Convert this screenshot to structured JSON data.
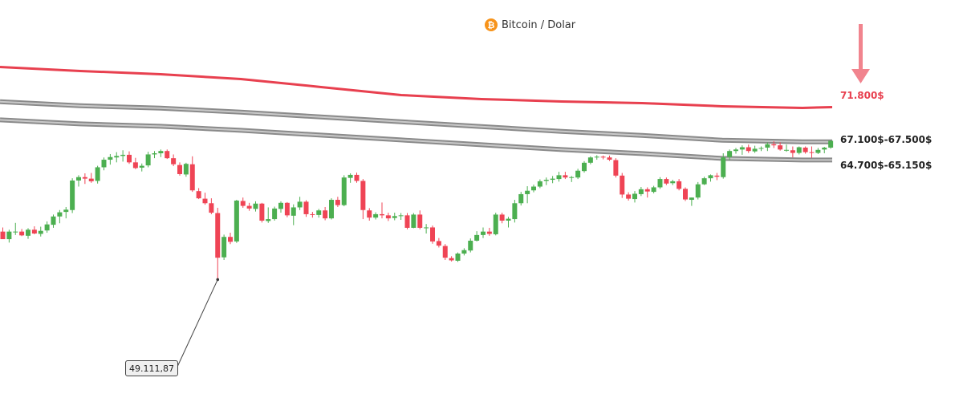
{
  "header": {
    "icon": "bitcoin-icon",
    "title": "Bitcoin / Dolar"
  },
  "colors": {
    "up": "#4caf50",
    "down": "#ef4455",
    "resistance": "#e8404f",
    "band": "#8a8a8a",
    "arrow": "#ef6f7a"
  },
  "labels": {
    "resistance": "71.800$",
    "upper_band": "67.100$-67.500$",
    "lower_band": "64.700$-65.150$",
    "low": "49.111,87"
  },
  "chart_data": {
    "type": "candlestick",
    "ylim": [
      46000,
      74000
    ],
    "annotations": {
      "low_value": 49111.87,
      "arrow": "down"
    },
    "levels": {
      "resistance": 71800,
      "upper_band": [
        67100,
        67500
      ],
      "lower_band": [
        64700,
        65150
      ]
    },
    "candles": [
      [
        55450,
        56000,
        54500,
        54450
      ],
      [
        54450,
        55700,
        54000,
        55450
      ],
      [
        55400,
        56600,
        55000,
        55450
      ],
      [
        55450,
        55800,
        54850,
        54950
      ],
      [
        54900,
        55900,
        54500,
        55700
      ],
      [
        55700,
        56150,
        55100,
        55200
      ],
      [
        55150,
        56100,
        54800,
        55550
      ],
      [
        55600,
        56800,
        55300,
        56400
      ],
      [
        56350,
        57700,
        55950,
        57450
      ],
      [
        57450,
        58300,
        56550,
        58000
      ],
      [
        58050,
        58700,
        57200,
        58350
      ],
      [
        58300,
        62500,
        57900,
        62200
      ],
      [
        62200,
        62900,
        61400,
        62650
      ],
      [
        62650,
        63150,
        61750,
        62450
      ],
      [
        62450,
        63200,
        61900,
        62100
      ],
      [
        62150,
        64150,
        61800,
        63950
      ],
      [
        63950,
        65250,
        63550,
        64950
      ],
      [
        64950,
        65700,
        64300,
        65300
      ],
      [
        65250,
        65950,
        64600,
        65450
      ],
      [
        65450,
        66200,
        64700,
        65600
      ],
      [
        65600,
        66050,
        64400,
        64600
      ],
      [
        64600,
        65200,
        63700,
        63850
      ],
      [
        63900,
        64450,
        63400,
        64150
      ],
      [
        64200,
        66000,
        63950,
        65650
      ],
      [
        65650,
        66100,
        65150,
        65800
      ],
      [
        65800,
        66300,
        65300,
        66100
      ],
      [
        66100,
        66300,
        65050,
        65150
      ],
      [
        65150,
        65650,
        64100,
        64350
      ],
      [
        64250,
        64600,
        62850,
        63050
      ],
      [
        63000,
        64550,
        62700,
        64400
      ],
      [
        64350,
        65400,
        60700,
        60900
      ],
      [
        60800,
        61200,
        59750,
        59850
      ],
      [
        59800,
        60600,
        59000,
        59200
      ],
      [
        59200,
        59850,
        57750,
        57950
      ],
      [
        57900,
        58600,
        49111.87,
        52000
      ],
      [
        52050,
        55050,
        51700,
        54750
      ],
      [
        54750,
        55300,
        53800,
        54100
      ],
      [
        54150,
        59650,
        53950,
        59550
      ],
      [
        59500,
        59950,
        58600,
        58850
      ],
      [
        58850,
        59250,
        58200,
        58500
      ],
      [
        58450,
        59450,
        58100,
        59150
      ],
      [
        59150,
        59250,
        56650,
        56900
      ],
      [
        56850,
        58650,
        56600,
        57100
      ],
      [
        57100,
        58750,
        56900,
        58500
      ],
      [
        58450,
        59450,
        57950,
        59250
      ],
      [
        59250,
        59350,
        57350,
        57600
      ],
      [
        57550,
        59050,
        56300,
        58650
      ],
      [
        58650,
        60050,
        58300,
        59400
      ],
      [
        59400,
        59600,
        57400,
        57750
      ],
      [
        57750,
        58050,
        57300,
        57650
      ],
      [
        57650,
        58450,
        57300,
        58250
      ],
      [
        58250,
        58700,
        56950,
        57200
      ],
      [
        57200,
        59850,
        57050,
        59650
      ],
      [
        59650,
        60050,
        58700,
        58950
      ],
      [
        58950,
        62900,
        58800,
        62600
      ],
      [
        62550,
        63150,
        61900,
        62950
      ],
      [
        62950,
        63250,
        61900,
        62150
      ],
      [
        62150,
        62400,
        57100,
        58300
      ],
      [
        58250,
        58550,
        56900,
        57300
      ],
      [
        57300,
        58000,
        57050,
        57750
      ],
      [
        57750,
        59300,
        57200,
        57600
      ],
      [
        57600,
        57950,
        56850,
        57200
      ],
      [
        57250,
        57950,
        56950,
        57500
      ],
      [
        57550,
        57900,
        57000,
        57600
      ],
      [
        57600,
        57900,
        55750,
        55950
      ],
      [
        55950,
        57900,
        55900,
        57700
      ],
      [
        57700,
        58250,
        55750,
        55950
      ],
      [
        55900,
        56450,
        55200,
        56000
      ],
      [
        56000,
        56250,
        53850,
        54150
      ],
      [
        54200,
        54600,
        53350,
        53600
      ],
      [
        53550,
        53800,
        51700,
        52000
      ],
      [
        51950,
        52200,
        51500,
        51650
      ],
      [
        51600,
        52700,
        51450,
        52550
      ],
      [
        52550,
        53250,
        52300,
        53000
      ],
      [
        52950,
        54550,
        52700,
        54250
      ],
      [
        54250,
        55500,
        54150,
        55000
      ],
      [
        55000,
        56000,
        54600,
        55450
      ],
      [
        55450,
        55950,
        54900,
        55150
      ],
      [
        55100,
        57950,
        54950,
        57700
      ],
      [
        57700,
        57950,
        56550,
        56900
      ],
      [
        56900,
        57400,
        56000,
        57150
      ],
      [
        57100,
        59650,
        56650,
        59200
      ],
      [
        59200,
        60700,
        58900,
        60400
      ],
      [
        60400,
        61450,
        59200,
        60850
      ],
      [
        60900,
        61650,
        60650,
        61400
      ],
      [
        61400,
        62350,
        61200,
        62100
      ],
      [
        62150,
        62600,
        61600,
        62300
      ],
      [
        62300,
        62800,
        61850,
        62450
      ],
      [
        62400,
        63350,
        62050,
        62900
      ],
      [
        62900,
        63350,
        62400,
        62600
      ],
      [
        62550,
        62800,
        62000,
        62650
      ],
      [
        62600,
        63750,
        62400,
        63500
      ],
      [
        63450,
        64750,
        63250,
        64550
      ],
      [
        64550,
        65400,
        64350,
        65250
      ],
      [
        65250,
        65550,
        64950,
        65350
      ],
      [
        65350,
        65500,
        65000,
        65250
      ],
      [
        65250,
        65500,
        64800,
        64950
      ],
      [
        64900,
        65150,
        62600,
        62850
      ],
      [
        62850,
        63200,
        59900,
        60350
      ],
      [
        60350,
        60650,
        59550,
        59800
      ],
      [
        59750,
        60800,
        59300,
        60450
      ],
      [
        60400,
        61350,
        60150,
        61050
      ],
      [
        61050,
        61300,
        59950,
        60750
      ],
      [
        60700,
        61500,
        60500,
        61300
      ],
      [
        61300,
        62650,
        61100,
        62400
      ],
      [
        62400,
        62600,
        61600,
        61800
      ],
      [
        61850,
        62300,
        61600,
        62100
      ],
      [
        62100,
        62400,
        60900,
        61100
      ],
      [
        61100,
        61300,
        59500,
        59700
      ],
      [
        59650,
        59950,
        58850,
        59950
      ],
      [
        59950,
        62000,
        59700,
        61700
      ],
      [
        61700,
        62700,
        61600,
        62500
      ],
      [
        62500,
        63000,
        62050,
        62900
      ],
      [
        62850,
        63200,
        62250,
        62700
      ],
      [
        62650,
        65800,
        62450,
        65250
      ],
      [
        65300,
        66300,
        64900,
        66100
      ],
      [
        66100,
        66500,
        65750,
        66300
      ],
      [
        66300,
        66850,
        65600,
        66600
      ],
      [
        66600,
        66950,
        65850,
        66100
      ],
      [
        66050,
        66800,
        65850,
        66400
      ],
      [
        66400,
        66700,
        66100,
        66500
      ],
      [
        66550,
        67250,
        66100,
        67000
      ],
      [
        67000,
        67400,
        66500,
        66850
      ],
      [
        66850,
        67250,
        66150,
        66300
      ],
      [
        66250,
        66950,
        66000,
        66250
      ],
      [
        66200,
        66700,
        65250,
        65850
      ],
      [
        65850,
        66700,
        65650,
        66600
      ],
      [
        66550,
        66700,
        65750,
        65950
      ],
      [
        65950,
        66700,
        65200,
        65850
      ],
      [
        65850,
        66500,
        65700,
        66250
      ],
      [
        66300,
        66650,
        65800,
        66550
      ],
      [
        66550,
        67500,
        66400,
        67450
      ]
    ]
  }
}
